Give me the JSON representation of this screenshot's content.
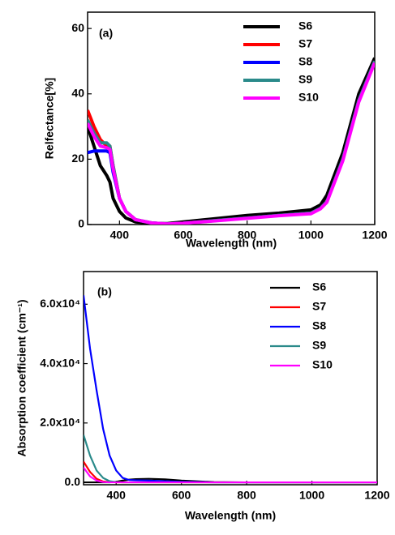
{
  "chart_data": [
    {
      "type": "line",
      "panel_label": "(a)",
      "xlabel": "Wavelength (nm)",
      "ylabel": "Relfectance[%]",
      "xlim": [
        300,
        1200
      ],
      "ylim": [
        0,
        65
      ],
      "xticks": [
        400,
        600,
        800,
        1000,
        1200
      ],
      "yticks": [
        0,
        20,
        40,
        60
      ],
      "legend": "upper right",
      "x": [
        300,
        320,
        340,
        360,
        370,
        380,
        400,
        420,
        450,
        500,
        550,
        600,
        700,
        800,
        900,
        1000,
        1030,
        1050,
        1100,
        1150,
        1200
      ],
      "series": [
        {
          "name": "S6",
          "color": "#000000",
          "values": [
            30,
            24,
            18,
            15,
            13,
            8,
            4,
            2,
            0.8,
            0.3,
            0.3,
            0.8,
            1.8,
            2.8,
            3.5,
            4.5,
            6,
            9,
            22,
            40,
            51
          ]
        },
        {
          "name": "S7",
          "color": "#ff0000",
          "values": [
            35,
            30,
            26,
            24,
            24,
            18,
            8,
            4,
            1.5,
            0.5,
            0.2,
            0.4,
            1.2,
            2,
            2.8,
            3.5,
            5,
            7,
            20,
            38,
            50
          ]
        },
        {
          "name": "S8",
          "color": "#0000ff",
          "values": [
            22,
            22.5,
            22.5,
            22.5,
            22,
            16,
            8,
            4,
            1.5,
            0.5,
            0.2,
            0.4,
            1.2,
            2,
            2.8,
            3.5,
            5,
            7,
            20,
            38,
            50
          ]
        },
        {
          "name": "S9",
          "color": "#2a8a8a",
          "values": [
            32,
            28,
            25,
            25,
            24,
            18,
            8,
            4,
            1.5,
            0.5,
            0.2,
            0.4,
            1.2,
            2,
            2.8,
            3.5,
            5,
            7,
            20,
            38,
            50
          ]
        },
        {
          "name": "S10",
          "color": "#ff00ff",
          "values": [
            31,
            27,
            24,
            23.5,
            23,
            17,
            8,
            4,
            1.5,
            0.5,
            0.2,
            0.4,
            1.1,
            1.9,
            2.7,
            3.3,
            4.8,
            6.8,
            19.5,
            37.5,
            49.5
          ]
        }
      ]
    },
    {
      "type": "line",
      "panel_label": "(b)",
      "xlabel": "Wavelength (nm)",
      "ylabel": "Absorption coefficient (cm⁻¹)",
      "xlim": [
        300,
        1200
      ],
      "ylim": [
        -800,
        71000
      ],
      "xticks": [
        400,
        600,
        800,
        1000,
        1200
      ],
      "yticks": [
        {
          "value": 0,
          "label": "0.0"
        },
        {
          "value": 20000,
          "label": "2.0x10⁴"
        },
        {
          "value": 40000,
          "label": "4.0x10⁴"
        },
        {
          "value": 60000,
          "label": "6.0x10⁴"
        }
      ],
      "legend": "upper right",
      "x": [
        300,
        320,
        340,
        360,
        380,
        400,
        420,
        440,
        460,
        500,
        550,
        600,
        700,
        800,
        1000,
        1200
      ],
      "series": [
        {
          "name": "S6",
          "color": "#000000",
          "values": [
            0,
            0,
            0,
            0,
            0,
            200,
            600,
            900,
            1100,
            1200,
            1000,
            600,
            100,
            0,
            0,
            0
          ]
        },
        {
          "name": "S7",
          "color": "#ff0000",
          "values": [
            7000,
            3500,
            1200,
            300,
            100,
            0,
            0,
            0,
            0,
            0,
            0,
            0,
            0,
            0,
            0,
            0
          ]
        },
        {
          "name": "S8",
          "color": "#0000ff",
          "values": [
            63000,
            45000,
            31000,
            18000,
            9000,
            4000,
            1500,
            800,
            700,
            600,
            400,
            200,
            0,
            0,
            0,
            0
          ]
        },
        {
          "name": "S9",
          "color": "#2a8a8a",
          "values": [
            16000,
            9000,
            4000,
            1500,
            400,
            100,
            0,
            0,
            0,
            0,
            0,
            0,
            0,
            0,
            0,
            0
          ]
        },
        {
          "name": "S10",
          "color": "#ff00ff",
          "values": [
            5000,
            2000,
            600,
            100,
            0,
            0,
            0,
            0,
            0,
            0,
            0,
            0,
            0,
            0,
            0,
            0
          ]
        }
      ]
    }
  ]
}
